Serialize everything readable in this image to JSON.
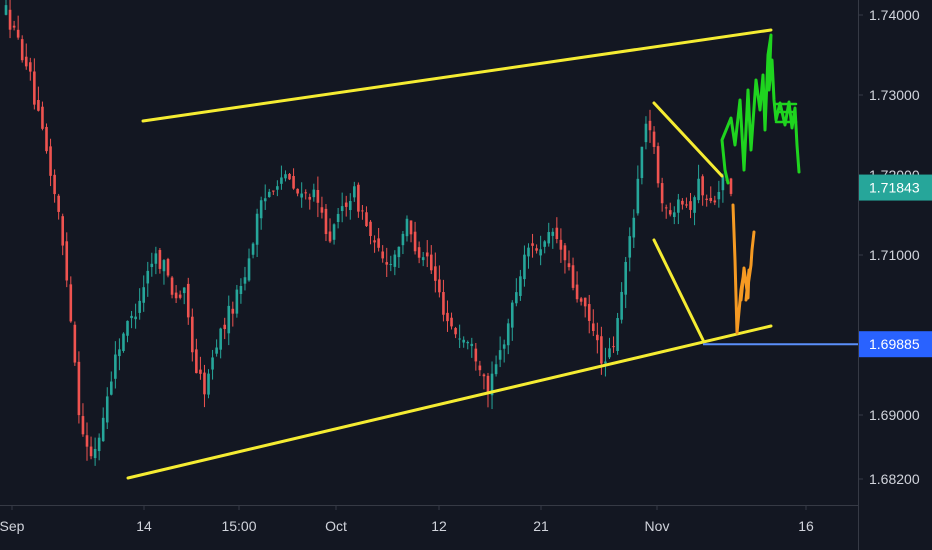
{
  "chart_data": {
    "type": "candlestick",
    "y_axis": {
      "ticks": [
        "1.74000",
        "1.73000",
        "1.72000",
        "1.71000",
        "1.69000",
        "1.68200"
      ],
      "tick_values": [
        1.74,
        1.73,
        1.72,
        1.71,
        1.69,
        1.682
      ],
      "range": [
        1.6786,
        1.7413
      ],
      "position": "right"
    },
    "x_axis": {
      "ticks": [
        "Sep",
        "14",
        "15:00",
        "Oct",
        "12",
        "21",
        "Nov",
        "16"
      ]
    },
    "price_labels": [
      {
        "text": "1.71843",
        "value": 1.71843,
        "color": "#26a69a"
      },
      {
        "text": "1.69885",
        "value": 1.69885,
        "color": "#2962ff"
      }
    ],
    "horizontal_line": {
      "value": 1.69885,
      "color": "#5b8ff9"
    },
    "candles": {
      "count": 180,
      "up_color": "#26a69a",
      "down_color": "#ef5350",
      "path_close": [
        1.7405,
        1.737,
        1.734,
        1.7275,
        1.722,
        1.715,
        1.705,
        1.69,
        1.684,
        1.688,
        1.695,
        1.7,
        1.702,
        1.706,
        1.71,
        1.709,
        1.705,
        1.705,
        1.696,
        1.693,
        1.699,
        1.702,
        1.705,
        1.709,
        1.715,
        1.718,
        1.72,
        1.719,
        1.717,
        1.718,
        1.715,
        1.712,
        1.716,
        1.718,
        1.715,
        1.711,
        1.709,
        1.71,
        1.714,
        1.711,
        1.71,
        1.706,
        1.702,
        1.7,
        1.699,
        1.697,
        1.693,
        1.6975,
        1.7025,
        1.708,
        1.712,
        1.71,
        1.713,
        1.71,
        1.706,
        1.703,
        1.7,
        1.696,
        1.6995,
        1.709,
        1.718,
        1.728,
        1.72,
        1.714,
        1.718,
        1.716,
        1.719,
        1.716,
        1.7195,
        1.718
      ]
    },
    "annotations": [
      {
        "name": "upper-channel-line",
        "color": "#f5ec32"
      },
      {
        "name": "lower-channel-line",
        "color": "#f5ec32"
      },
      {
        "name": "wedge-upper-line",
        "color": "#f5ec32"
      },
      {
        "name": "wedge-lower-line",
        "color": "#f5ec32"
      },
      {
        "name": "projected-drop-path",
        "color": "#f59a23"
      },
      {
        "name": "projected-rally-path",
        "color": "#1fd41f"
      }
    ],
    "background": "#131722",
    "axis_text_color": "#d1d4dc",
    "separator_color": "#363a45"
  }
}
